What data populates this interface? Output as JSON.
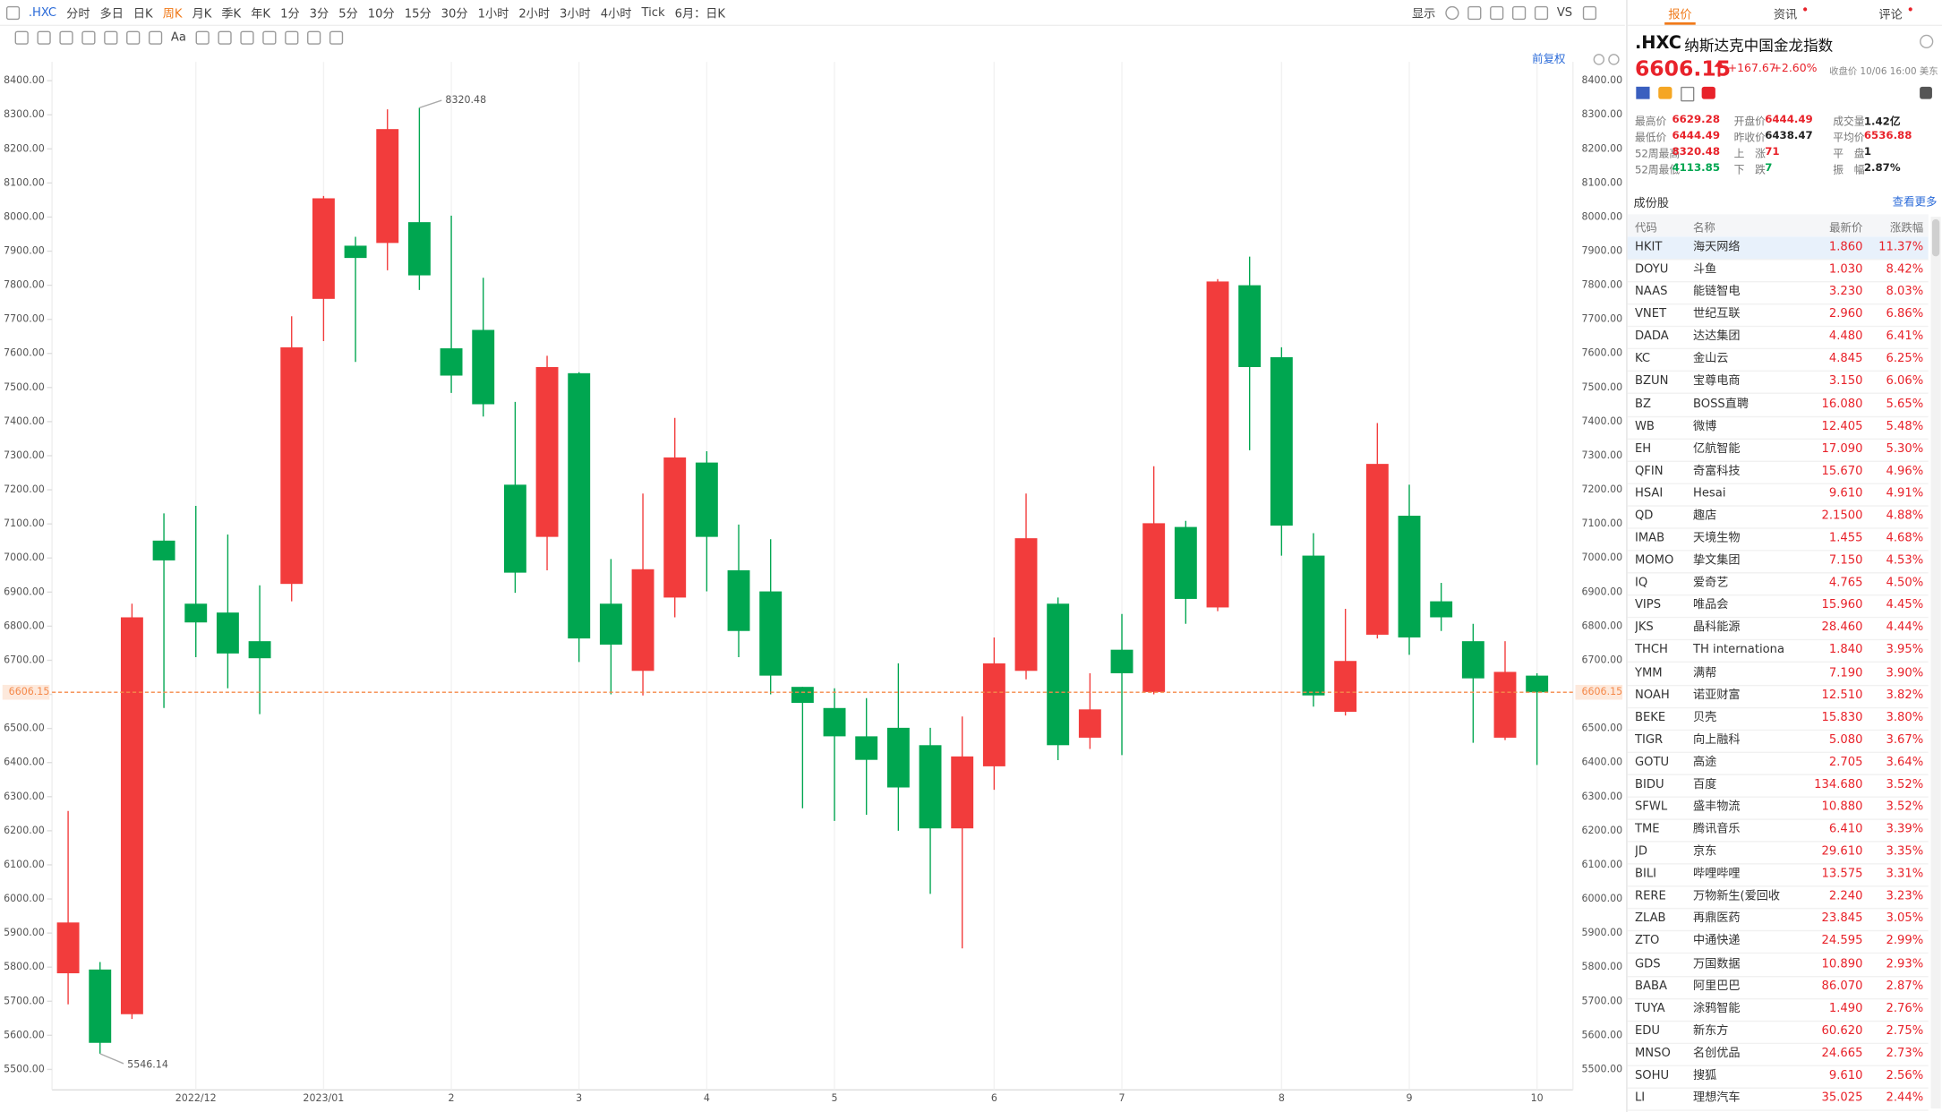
{
  "toolbar": {
    "symbol": ".HXC",
    "periods": [
      "分时",
      "多日",
      "日K",
      "周K",
      "月K",
      "季K",
      "年K",
      "1分",
      "3分",
      "5分",
      "10分",
      "15分",
      "30分",
      "1小时",
      "2小时",
      "3小时",
      "4小时",
      "Tick"
    ],
    "selected_period": 3,
    "range": "6月：日K",
    "display": "显示",
    "compare": "VS",
    "text_tool": "Aa",
    "adjust": "前复权"
  },
  "tabs": [
    "报价",
    "资讯",
    "评论"
  ],
  "active_tab": 0,
  "quote": {
    "symbol": ".HXC",
    "name": "纳斯达克中国金龙指数",
    "price": "6606.15",
    "change": "+167.67",
    "change_pct": "+2.60%",
    "status": "收盘价 10/06 16:00 美东",
    "stats": [
      [
        {
          "label": "最高价",
          "value": "6629.28",
          "tone": "up"
        },
        {
          "label": "开盘价",
          "value": "6444.49",
          "tone": "up"
        },
        {
          "label": "成交量",
          "value": "1.42亿",
          "tone": "flat"
        }
      ],
      [
        {
          "label": "最低价",
          "value": "6444.49",
          "tone": "up"
        },
        {
          "label": "昨收价",
          "value": "6438.47",
          "tone": "flat"
        },
        {
          "label": "平均价",
          "value": "6536.88",
          "tone": "up"
        }
      ],
      [
        {
          "label": "52周最高",
          "value": "8320.48",
          "tone": "up"
        },
        {
          "label": "上　涨",
          "value": "71",
          "tone": "up"
        },
        {
          "label": "平　盘",
          "value": "1",
          "tone": "flat"
        }
      ],
      [
        {
          "label": "52周最低",
          "value": "4113.85",
          "tone": "down"
        },
        {
          "label": "下　跌",
          "value": "7",
          "tone": "down"
        },
        {
          "label": "振　幅",
          "value": "2.87%",
          "tone": "flat"
        }
      ]
    ]
  },
  "constituents": {
    "title": "成份股",
    "more": "查看更多",
    "columns": [
      "代码",
      "名称",
      "最新价",
      "涨跌幅"
    ],
    "selected_row": 0,
    "rows": [
      [
        "HKIT",
        "海天网络",
        "1.860",
        "11.37%"
      ],
      [
        "DOYU",
        "斗鱼",
        "1.030",
        "8.42%"
      ],
      [
        "NAAS",
        "能链智电",
        "3.230",
        "8.03%"
      ],
      [
        "VNET",
        "世纪互联",
        "2.960",
        "6.86%"
      ],
      [
        "DADA",
        "达达集团",
        "4.480",
        "6.41%"
      ],
      [
        "KC",
        "金山云",
        "4.845",
        "6.25%"
      ],
      [
        "BZUN",
        "宝尊电商",
        "3.150",
        "6.06%"
      ],
      [
        "BZ",
        "BOSS直聘",
        "16.080",
        "5.65%"
      ],
      [
        "WB",
        "微博",
        "12.405",
        "5.48%"
      ],
      [
        "EH",
        "亿航智能",
        "17.090",
        "5.30%"
      ],
      [
        "QFIN",
        "奇富科技",
        "15.670",
        "4.96%"
      ],
      [
        "HSAI",
        "Hesai",
        "9.610",
        "4.91%"
      ],
      [
        "QD",
        "趣店",
        "2.1500",
        "4.88%"
      ],
      [
        "IMAB",
        "天境生物",
        "1.455",
        "4.68%"
      ],
      [
        "MOMO",
        "挚文集团",
        "7.150",
        "4.53%"
      ],
      [
        "IQ",
        "爱奇艺",
        "4.765",
        "4.50%"
      ],
      [
        "VIPS",
        "唯品会",
        "15.960",
        "4.45%"
      ],
      [
        "JKS",
        "晶科能源",
        "28.460",
        "4.44%"
      ],
      [
        "THCH",
        "TH internationa",
        "1.840",
        "3.95%"
      ],
      [
        "YMM",
        "满帮",
        "7.190",
        "3.90%"
      ],
      [
        "NOAH",
        "诺亚财富",
        "12.510",
        "3.82%"
      ],
      [
        "BEKE",
        "贝壳",
        "15.830",
        "3.80%"
      ],
      [
        "TIGR",
        "向上融科",
        "5.080",
        "3.67%"
      ],
      [
        "GOTU",
        "高途",
        "2.705",
        "3.64%"
      ],
      [
        "BIDU",
        "百度",
        "134.680",
        "3.52%"
      ],
      [
        "SFWL",
        "盛丰物流",
        "10.880",
        "3.52%"
      ],
      [
        "TME",
        "腾讯音乐",
        "6.410",
        "3.39%"
      ],
      [
        "JD",
        "京东",
        "29.610",
        "3.35%"
      ],
      [
        "BILI",
        "哔哩哔哩",
        "13.575",
        "3.31%"
      ],
      [
        "RERE",
        "万物新生(爱回收",
        "2.240",
        "3.23%"
      ],
      [
        "ZLAB",
        "再鼎医药",
        "23.845",
        "3.05%"
      ],
      [
        "ZTO",
        "中通快递",
        "24.595",
        "2.99%"
      ],
      [
        "GDS",
        "万国数据",
        "10.890",
        "2.93%"
      ],
      [
        "BABA",
        "阿里巴巴",
        "86.070",
        "2.87%"
      ],
      [
        "TUYA",
        "涂鸦智能",
        "1.490",
        "2.76%"
      ],
      [
        "EDU",
        "新东方",
        "60.620",
        "2.75%"
      ],
      [
        "MNSO",
        "名创优品",
        "24.665",
        "2.73%"
      ],
      [
        "SOHU",
        "搜狐",
        "9.610",
        "2.56%"
      ],
      [
        "LI",
        "理想汽车",
        "35.025",
        "2.44%"
      ]
    ]
  },
  "chart_data": {
    "type": "candlestick",
    "categories": [
      null,
      null,
      null,
      null,
      "2022/12",
      null,
      null,
      null,
      "2023/01",
      null,
      null,
      null,
      "2",
      null,
      null,
      null,
      "3",
      null,
      null,
      null,
      "4",
      null,
      null,
      null,
      "5",
      null,
      null,
      null,
      null,
      "6",
      null,
      null,
      null,
      "7",
      null,
      null,
      null,
      null,
      "8",
      null,
      null,
      null,
      "9",
      null,
      null,
      null,
      "10"
    ],
    "open": [
      5782,
      5793,
      5662,
      7051,
      6866,
      6840,
      6756,
      6924,
      7760,
      7916,
      7924,
      7985,
      7615,
      7669,
      7215,
      7062,
      7542,
      6866,
      6669,
      6884,
      7280,
      6964,
      6902,
      6622,
      6560,
      6477,
      6502,
      6451,
      6207,
      6389,
      6669,
      6866,
      6473,
      6731,
      6607,
      7091,
      6855,
      7800,
      7589,
      7007,
      6549,
      6775,
      7124,
      6873,
      6756,
      6473,
      6655
    ],
    "high": [
      6258,
      5815,
      6866,
      7131,
      7153,
      7069,
      6920,
      7709,
      8062,
      7942,
      8316,
      8320.48,
      8004,
      7822,
      7458,
      7593,
      7545,
      6997,
      7189,
      7411,
      7313,
      7098,
      7055,
      6622,
      6618,
      6589,
      6691,
      6502,
      6535,
      6767,
      7189,
      6884,
      6662,
      6836,
      7269,
      7109,
      7818,
      7884,
      7618,
      7073,
      6851,
      7396,
      7215,
      6927,
      6807,
      6756,
      6662
    ],
    "low": [
      5691,
      5546.14,
      5648,
      6560,
      6709,
      6618,
      6542,
      6873,
      7636,
      7575,
      7844,
      7786,
      7484,
      7415,
      6898,
      6964,
      6695,
      6600,
      6597,
      6826,
      6902,
      6709,
      6600,
      6266,
      6229,
      6247,
      6200,
      6015,
      5855,
      6320,
      6644,
      6407,
      6440,
      6422,
      6600,
      6807,
      6844,
      7316,
      7007,
      6564,
      6538,
      6764,
      6716,
      6786,
      6458,
      6466,
      6393
    ],
    "close": [
      5931,
      5578,
      6826,
      6993,
      6811,
      6720,
      6706,
      7618,
      8055,
      7880,
      8258,
      7829,
      7535,
      7451,
      6957,
      7560,
      6764,
      6746,
      6967,
      7295,
      7062,
      6786,
      6655,
      6575,
      6477,
      6408,
      6327,
      6207,
      6418,
      6691,
      7058,
      6451,
      6556,
      6662,
      7102,
      6880,
      7811,
      7560,
      7095,
      6597,
      6698,
      7276,
      6767,
      6826,
      6647,
      6666,
      6606.15
    ],
    "up_color": "#f23c3c",
    "down_color": "#00a650",
    "price_line_color": "#f5894a",
    "ylim": [
      5440,
      8455
    ],
    "yticks": [
      {
        "value": 5500,
        "label": "5500.00"
      },
      {
        "value": 5600,
        "label": "5600.00"
      },
      {
        "value": 5700,
        "label": "5700.00"
      },
      {
        "value": 5800,
        "label": "5800.00"
      },
      {
        "value": 5900,
        "label": "5900.00"
      },
      {
        "value": 6000,
        "label": "6000.00"
      },
      {
        "value": 6100,
        "label": "6100.00"
      },
      {
        "value": 6200,
        "label": "6200.00"
      },
      {
        "value": 6300,
        "label": "6300.00"
      },
      {
        "value": 6400,
        "label": "6400.00"
      },
      {
        "value": 6500,
        "label": "6500.00"
      },
      {
        "value": 6600,
        "label": "6600.00"
      },
      {
        "value": 6700,
        "label": "6700.00"
      },
      {
        "value": 6800,
        "label": "6800.00"
      },
      {
        "value": 6900,
        "label": "6900.00"
      },
      {
        "value": 7000,
        "label": "7000.00"
      },
      {
        "value": 7100,
        "label": "7100.00"
      },
      {
        "value": 7200,
        "label": "7200.00"
      },
      {
        "value": 7300,
        "label": "7300.00"
      },
      {
        "value": 7400,
        "label": "7400.00"
      },
      {
        "value": 7500,
        "label": "7500.00"
      },
      {
        "value": 7600,
        "label": "7600.00"
      },
      {
        "value": 7700,
        "label": "7700.00"
      },
      {
        "value": 7800,
        "label": "7800.00"
      },
      {
        "value": 7900,
        "label": "7900.00"
      },
      {
        "value": 8000,
        "label": "8000.00"
      },
      {
        "value": 8100,
        "label": "8100.00"
      },
      {
        "value": 8200,
        "label": "8200.00"
      },
      {
        "value": 8300,
        "label": "8300.00"
      },
      {
        "value": 8400,
        "label": "8400.00"
      }
    ],
    "xgrid": true,
    "grid": false
  }
}
